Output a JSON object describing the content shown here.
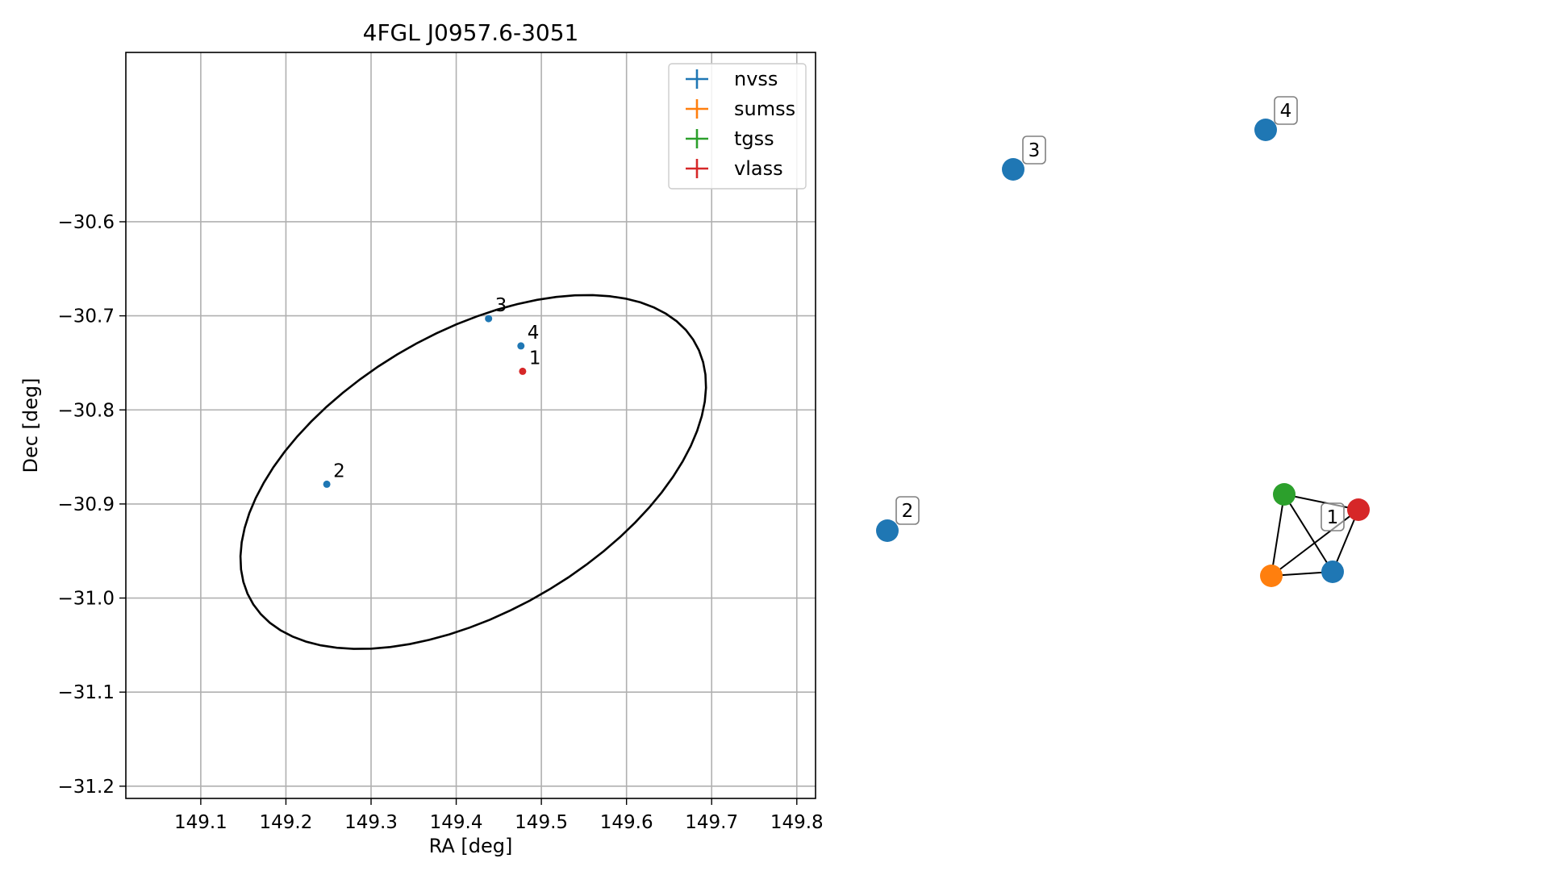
{
  "chart_data": [
    {
      "type": "scatter",
      "title": "4FGL J0957.6-3051",
      "xlabel": "RA [deg]",
      "ylabel": "Dec [deg]",
      "xlim": [
        149.012,
        149.822
      ],
      "ylim": [
        -31.213,
        -30.42
      ],
      "xticks": [
        149.1,
        149.2,
        149.3,
        149.4,
        149.5,
        149.6,
        149.7,
        149.8
      ],
      "xtick_labels": [
        "149.1",
        "149.2",
        "149.3",
        "149.4",
        "149.5",
        "149.6",
        "149.7",
        "149.8"
      ],
      "yticks": [
        -30.6,
        -30.7,
        -30.8,
        -30.9,
        -31.0,
        -31.1,
        -31.2
      ],
      "ytick_labels": [
        "−30.6",
        "−30.7",
        "−30.8",
        "−30.9",
        "−31.0",
        "−31.1",
        "−31.2"
      ],
      "grid": true,
      "legend_position": "top-right",
      "legend": [
        {
          "name": "nvss",
          "color": "#1f77b4"
        },
        {
          "name": "sumss",
          "color": "#ff7f0e"
        },
        {
          "name": "tgss",
          "color": "#2ca02c"
        },
        {
          "name": "vlass",
          "color": "#d62728"
        }
      ],
      "points": [
        {
          "label": "3",
          "ra": 149.438,
          "dec": -30.703,
          "series": "nvss",
          "color": "#1f77b4"
        },
        {
          "label": "4",
          "ra": 149.476,
          "dec": -30.732,
          "series": "nvss",
          "color": "#1f77b4"
        },
        {
          "label": "1",
          "ra": 149.478,
          "dec": -30.759,
          "series": "vlass",
          "color": "#d62728"
        },
        {
          "label": "2",
          "ra": 149.248,
          "dec": -30.879,
          "series": "nvss",
          "color": "#1f77b4"
        }
      ],
      "ellipse": {
        "center": [
          149.42,
          -30.866
        ],
        "semi_major": 0.295,
        "semi_minor": 0.152,
        "angle_deg": 26,
        "color": "#000000"
      }
    },
    {
      "type": "network",
      "nodes": [
        {
          "id": "n3",
          "color": "#1f77b4",
          "label": "3"
        },
        {
          "id": "n4",
          "color": "#1f77b4",
          "label": "4"
        },
        {
          "id": "n2",
          "color": "#1f77b4",
          "label": "2"
        },
        {
          "id": "tgss",
          "color": "#2ca02c",
          "label": ""
        },
        {
          "id": "vlass",
          "color": "#d62728",
          "label": ""
        },
        {
          "id": "sumss",
          "color": "#ff7f0e",
          "label": ""
        },
        {
          "id": "nvss1",
          "color": "#1f77b4",
          "label": ""
        }
      ],
      "edges": [
        [
          "tgss",
          "vlass"
        ],
        [
          "tgss",
          "sumss"
        ],
        [
          "tgss",
          "nvss1"
        ],
        [
          "vlass",
          "sumss"
        ],
        [
          "vlass",
          "nvss1"
        ],
        [
          "sumss",
          "nvss1"
        ]
      ],
      "group_labels": [
        {
          "label": "1",
          "members": [
            "tgss",
            "vlass",
            "sumss",
            "nvss1"
          ]
        }
      ]
    }
  ]
}
